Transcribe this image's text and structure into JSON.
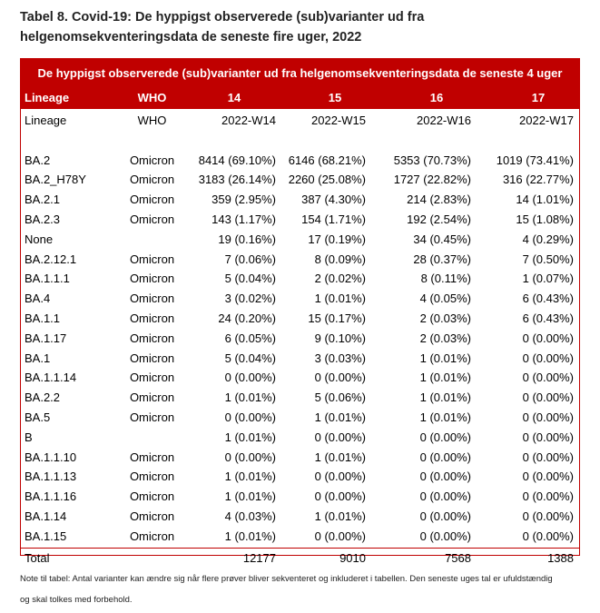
{
  "title_line1": "Tabel 8. Covid-19: De hyppigst observerede (sub)varianter ud fra",
  "title_line2": "helgenomsekventeringsdata de seneste fire uger, 2022",
  "banner": "De hyppigst observerede (sub)varianter ud fra helgenomsekventeringsdata de seneste 4 uger",
  "header": {
    "lineage": "Lineage",
    "who": "WHO",
    "w14": "14",
    "w15": "15",
    "w16": "16",
    "w17": "17"
  },
  "rows": [
    {
      "lineage": "Lineage",
      "who": "WHO",
      "w14": "2022-W14",
      "w15": "2022-W15",
      "w16": "2022-W16",
      "w17": "2022-W17"
    },
    {
      "lineage": "",
      "who": "",
      "w14": "",
      "w15": "",
      "w16": "",
      "w17": ""
    },
    {
      "lineage": "BA.2",
      "who": "Omicron",
      "w14": "8414 (69.10%)",
      "w15": "6146 (68.21%)",
      "w16": "5353 (70.73%)",
      "w17": "1019 (73.41%)"
    },
    {
      "lineage": "BA.2_H78Y",
      "who": "Omicron",
      "w14": "3183 (26.14%)",
      "w15": "2260 (25.08%)",
      "w16": "1727 (22.82%)",
      "w17": "316 (22.77%)"
    },
    {
      "lineage": "BA.2.1",
      "who": "Omicron",
      "w14": "359 (2.95%)",
      "w15": "387 (4.30%)",
      "w16": "214 (2.83%)",
      "w17": "14 (1.01%)"
    },
    {
      "lineage": "BA.2.3",
      "who": "Omicron",
      "w14": "143 (1.17%)",
      "w15": "154 (1.71%)",
      "w16": "192 (2.54%)",
      "w17": "15 (1.08%)"
    },
    {
      "lineage": "None",
      "who": "",
      "w14": "19 (0.16%)",
      "w15": "17 (0.19%)",
      "w16": "34 (0.45%)",
      "w17": "4 (0.29%)"
    },
    {
      "lineage": "BA.2.12.1",
      "who": "Omicron",
      "w14": "7 (0.06%)",
      "w15": "8 (0.09%)",
      "w16": "28 (0.37%)",
      "w17": "7 (0.50%)"
    },
    {
      "lineage": "BA.1.1.1",
      "who": "Omicron",
      "w14": "5 (0.04%)",
      "w15": "2 (0.02%)",
      "w16": "8 (0.11%)",
      "w17": "1 (0.07%)"
    },
    {
      "lineage": "BA.4",
      "who": "Omicron",
      "w14": "3 (0.02%)",
      "w15": "1 (0.01%)",
      "w16": "4 (0.05%)",
      "w17": "6 (0.43%)"
    },
    {
      "lineage": "BA.1.1",
      "who": "Omicron",
      "w14": "24 (0.20%)",
      "w15": "15 (0.17%)",
      "w16": "2 (0.03%)",
      "w17": "6 (0.43%)"
    },
    {
      "lineage": "BA.1.17",
      "who": "Omicron",
      "w14": "6 (0.05%)",
      "w15": "9 (0.10%)",
      "w16": "2 (0.03%)",
      "w17": "0 (0.00%)"
    },
    {
      "lineage": "BA.1",
      "who": "Omicron",
      "w14": "5 (0.04%)",
      "w15": "3 (0.03%)",
      "w16": "1 (0.01%)",
      "w17": "0 (0.00%)"
    },
    {
      "lineage": "BA.1.1.14",
      "who": "Omicron",
      "w14": "0 (0.00%)",
      "w15": "0 (0.00%)",
      "w16": "1 (0.01%)",
      "w17": "0 (0.00%)"
    },
    {
      "lineage": "BA.2.2",
      "who": "Omicron",
      "w14": "1 (0.01%)",
      "w15": "5 (0.06%)",
      "w16": "1 (0.01%)",
      "w17": "0 (0.00%)"
    },
    {
      "lineage": "BA.5",
      "who": "Omicron",
      "w14": "0 (0.00%)",
      "w15": "1 (0.01%)",
      "w16": "1 (0.01%)",
      "w17": "0 (0.00%)"
    },
    {
      "lineage": "B",
      "who": "",
      "w14": "1 (0.01%)",
      "w15": "0 (0.00%)",
      "w16": "0 (0.00%)",
      "w17": "0 (0.00%)"
    },
    {
      "lineage": "BA.1.1.10",
      "who": "Omicron",
      "w14": "0 (0.00%)",
      "w15": "1 (0.01%)",
      "w16": "0 (0.00%)",
      "w17": "0 (0.00%)"
    },
    {
      "lineage": "BA.1.1.13",
      "who": "Omicron",
      "w14": "1 (0.01%)",
      "w15": "0 (0.00%)",
      "w16": "0 (0.00%)",
      "w17": "0 (0.00%)"
    },
    {
      "lineage": "BA.1.1.16",
      "who": "Omicron",
      "w14": "1 (0.01%)",
      "w15": "0 (0.00%)",
      "w16": "0 (0.00%)",
      "w17": "0 (0.00%)"
    },
    {
      "lineage": "BA.1.14",
      "who": "Omicron",
      "w14": "4 (0.03%)",
      "w15": "1 (0.01%)",
      "w16": "0 (0.00%)",
      "w17": "0 (0.00%)"
    },
    {
      "lineage": "BA.1.15",
      "who": "Omicron",
      "w14": "1 (0.01%)",
      "w15": "0 (0.00%)",
      "w16": "0 (0.00%)",
      "w17": "0 (0.00%)"
    },
    {
      "lineage": "Total",
      "who": "",
      "w14": "12177",
      "w15": "9010",
      "w16": "7568",
      "w17": "1388"
    }
  ],
  "note_line1": "Note til  tabel: Antal varianter kan ændre sig når flere prøver bliver sekventeret og inkluderet i tabellen. Den seneste uges tal er ufuldstændig",
  "note_line2": "og skal tolkes med forbehold.",
  "colors": {
    "accent": "#c00000"
  }
}
